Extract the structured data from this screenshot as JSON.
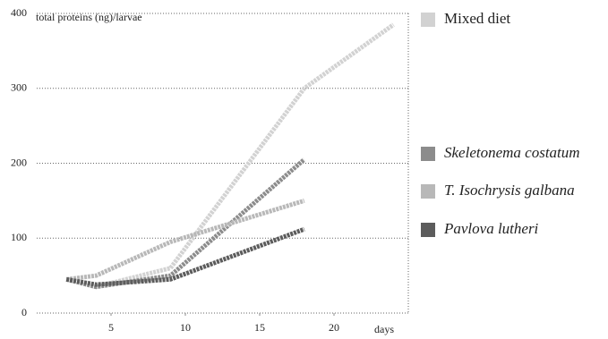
{
  "chart_data": {
    "type": "line",
    "y_label": "total proteins (ng)/larvae",
    "x_label": "days",
    "xlim": [
      0,
      25
    ],
    "xticks": [
      5,
      10,
      15,
      20
    ],
    "ylim": [
      0,
      400
    ],
    "yticks": [
      0,
      100,
      200,
      300,
      400
    ],
    "grid": true,
    "series": [
      {
        "name": "Mixed diet",
        "color": "#d2d2d2",
        "x": [
          2,
          4,
          9,
          18,
          24
        ],
        "values": [
          45,
          35,
          60,
          300,
          385
        ]
      },
      {
        "name": "Skeletonema costatum",
        "color": "#8c8c8c",
        "x": [
          2,
          4,
          9,
          18
        ],
        "values": [
          45,
          35,
          50,
          205
        ]
      },
      {
        "name": "T. Isochrysis galbana",
        "color": "#b8b8b8",
        "x": [
          2,
          4,
          9,
          18
        ],
        "values": [
          45,
          50,
          95,
          150
        ]
      },
      {
        "name": "Pavlova lutheri",
        "color": "#5c5c5c",
        "x": [
          2,
          4,
          9,
          18
        ],
        "values": [
          45,
          38,
          45,
          112
        ]
      }
    ]
  }
}
